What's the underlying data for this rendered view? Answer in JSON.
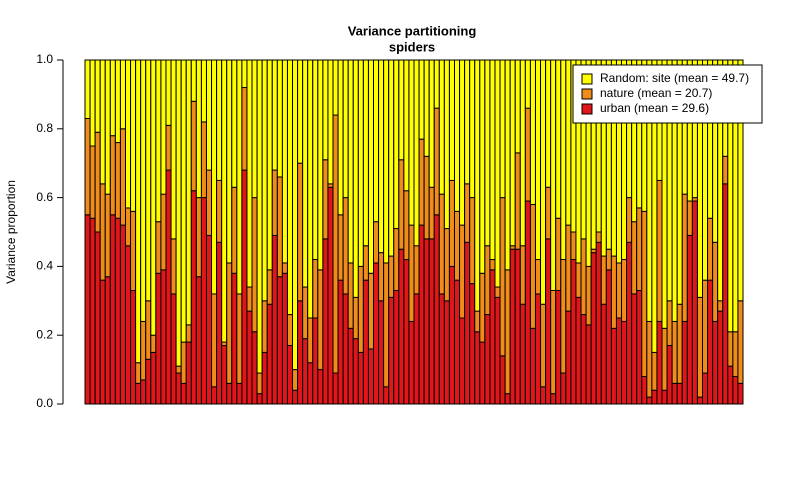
{
  "chart_data": {
    "type": "stacked_bar",
    "title": "Variance partitioning",
    "subtitle": "spiders",
    "y_label": "Variance proportion",
    "categories": [
      null,
      null,
      null,
      null,
      null,
      null,
      null,
      null,
      null,
      null,
      null,
      null,
      null,
      null,
      null,
      null,
      null,
      null,
      null,
      null,
      null,
      null,
      null,
      null,
      null,
      null,
      null,
      null,
      null,
      null,
      null,
      null,
      null,
      null,
      null,
      null,
      null,
      null,
      null,
      null,
      null,
      null,
      null,
      null,
      null,
      null,
      null,
      null,
      null,
      null,
      null,
      null,
      null,
      null,
      null,
      null,
      null,
      null,
      null,
      null,
      null,
      null,
      null,
      null,
      null,
      null,
      null,
      null,
      null,
      null,
      null,
      null,
      null,
      null,
      null,
      null,
      null,
      null,
      null,
      null,
      null,
      null,
      null,
      null,
      null,
      null,
      null,
      null,
      null,
      null,
      null,
      null,
      null,
      null,
      null,
      null,
      null,
      null,
      null,
      null,
      null,
      null,
      null,
      null,
      null,
      null,
      null,
      null,
      null,
      null,
      null,
      null,
      null,
      null,
      null,
      null,
      null,
      null,
      null,
      null,
      null,
      null,
      null,
      null,
      null,
      null,
      null,
      null,
      null,
      null
    ],
    "ylim": [
      0,
      1
    ],
    "yticks": [
      {
        "value": 0,
        "label": "0.0"
      },
      0.2,
      0.4,
      0.6,
      0.8,
      {
        "value": 1,
        "label": "1.0"
      }
    ],
    "legend": "top-right",
    "series": [
      {
        "name": "Random: site (mean = 49.7)",
        "color": "#ffff00",
        "values": [
          0.17,
          0.25,
          0.21,
          0.36,
          0.39,
          0.22,
          0.24,
          0.2,
          0.43,
          0.44,
          0.88,
          0.76,
          0.7,
          0.8,
          0.47,
          0.39,
          0.19,
          0.52,
          0.89,
          0.82,
          0.77,
          0.12,
          0.4,
          0.18,
          0.32,
          0.68,
          0.35,
          0.82,
          0.59,
          0.37,
          0.68,
          0.08,
          0.66,
          0.4,
          0.91,
          0.7,
          0.61,
          0.32,
          0.34,
          0.59,
          0.74,
          0.9,
          0.3,
          0.66,
          0.75,
          0.58,
          0.61,
          0.29,
          0.36,
          0.16,
          0.45,
          0.4,
          0.59,
          0.69,
          0.6,
          0.54,
          0.62,
          0.47,
          0.56,
          0.59,
          0.57,
          0.49,
          0.29,
          0.38,
          0.48,
          0.54,
          0.23,
          0.28,
          0.37,
          0.14,
          0.39,
          0.49,
          0.35,
          0.44,
          0.48,
          0.36,
          0.4,
          0.73,
          0.62,
          0.54,
          0.58,
          0.66,
          0.4,
          0.61,
          0.54,
          0.27,
          0.54,
          0.14,
          0.42,
          0.58,
          0.71,
          0.37,
          0.67,
          0.46,
          0.58,
          0.48,
          0.5,
          0.59,
          0.52,
          0.6,
          0.55,
          0.5,
          0.57,
          0.55,
          0.57,
          0.59,
          0.58,
          0.4,
          0.47,
          0.43,
          0.44,
          0.76,
          0.85,
          0.35,
          0.78,
          0.7,
          0.76,
          0.71,
          0.39,
          0.41,
          0.4,
          0.69,
          0.64,
          0.46,
          0.53,
          0.7,
          0.28,
          0.79,
          0.79,
          0.7
        ]
      },
      {
        "name": "nature (mean = 20.7)",
        "color": "#f08c1a",
        "values": [
          0.28,
          0.21,
          0.29,
          0.28,
          0.24,
          0.23,
          0.22,
          0.28,
          0.11,
          0.23,
          0.06,
          0.17,
          0.17,
          0.05,
          0.15,
          0.22,
          0.13,
          0.16,
          0.02,
          0.12,
          0.05,
          0.26,
          0.23,
          0.22,
          0.19,
          0.27,
          0.18,
          0.01,
          0.35,
          0.25,
          0.26,
          0.24,
          0.07,
          0.39,
          0.06,
          0.15,
          0.1,
          0.19,
          0.29,
          0.03,
          0.09,
          0.06,
          0.4,
          0.15,
          0.13,
          0.17,
          0.29,
          0.23,
          0.01,
          0.75,
          0.19,
          0.28,
          0.19,
          0.12,
          0.25,
          0.1,
          0.22,
          0.12,
          0.14,
          0.36,
          0.12,
          0.18,
          0.26,
          0.2,
          0.28,
          0.14,
          0.25,
          0.24,
          0.15,
          0.31,
          0.29,
          0.21,
          0.25,
          0.2,
          0.27,
          0.17,
          0.25,
          0.06,
          0.2,
          0.2,
          0.03,
          0.03,
          0.46,
          0.36,
          0.01,
          0.28,
          0.17,
          0.27,
          0.36,
          0.1,
          0.24,
          0.15,
          0.3,
          0.21,
          0.33,
          0.25,
          0.08,
          0.1,
          0.22,
          0.17,
          0.01,
          0.03,
          0.14,
          0.06,
          0.21,
          0.16,
          0.18,
          0.13,
          0.21,
          0.24,
          0.48,
          0.22,
          0.11,
          0.41,
          0.18,
          0.13,
          0.18,
          0.23,
          0.37,
          0.1,
          0.01,
          0.29,
          0.27,
          0.18,
          0.23,
          0.03,
          0.08,
          0.1,
          0.13,
          0.24
        ]
      },
      {
        "name": "urban (mean = 29.6)",
        "color": "#e0161b",
        "values": [
          0.55,
          0.54,
          0.5,
          0.36,
          0.37,
          0.55,
          0.54,
          0.52,
          0.46,
          0.33,
          0.06,
          0.07,
          0.13,
          0.15,
          0.38,
          0.39,
          0.68,
          0.32,
          0.09,
          0.06,
          0.18,
          0.62,
          0.37,
          0.6,
          0.49,
          0.05,
          0.47,
          0.17,
          0.06,
          0.38,
          0.06,
          0.68,
          0.27,
          0.21,
          0.03,
          0.15,
          0.29,
          0.49,
          0.37,
          0.38,
          0.17,
          0.04,
          0.3,
          0.19,
          0.12,
          0.25,
          0.1,
          0.48,
          0.63,
          0.09,
          0.36,
          0.32,
          0.22,
          0.19,
          0.15,
          0.36,
          0.16,
          0.41,
          0.3,
          0.05,
          0.31,
          0.33,
          0.45,
          0.42,
          0.24,
          0.32,
          0.52,
          0.48,
          0.48,
          0.55,
          0.32,
          0.3,
          0.4,
          0.36,
          0.25,
          0.47,
          0.35,
          0.21,
          0.18,
          0.26,
          0.39,
          0.31,
          0.14,
          0.03,
          0.45,
          0.45,
          0.29,
          0.59,
          0.22,
          0.32,
          0.05,
          0.48,
          0.03,
          0.33,
          0.09,
          0.27,
          0.42,
          0.31,
          0.26,
          0.23,
          0.44,
          0.47,
          0.29,
          0.39,
          0.22,
          0.25,
          0.24,
          0.47,
          0.32,
          0.33,
          0.08,
          0.02,
          0.04,
          0.24,
          0.04,
          0.17,
          0.06,
          0.06,
          0.24,
          0.49,
          0.59,
          0.02,
          0.09,
          0.36,
          0.24,
          0.27,
          0.64,
          0.11,
          0.08,
          0.06
        ]
      }
    ]
  }
}
